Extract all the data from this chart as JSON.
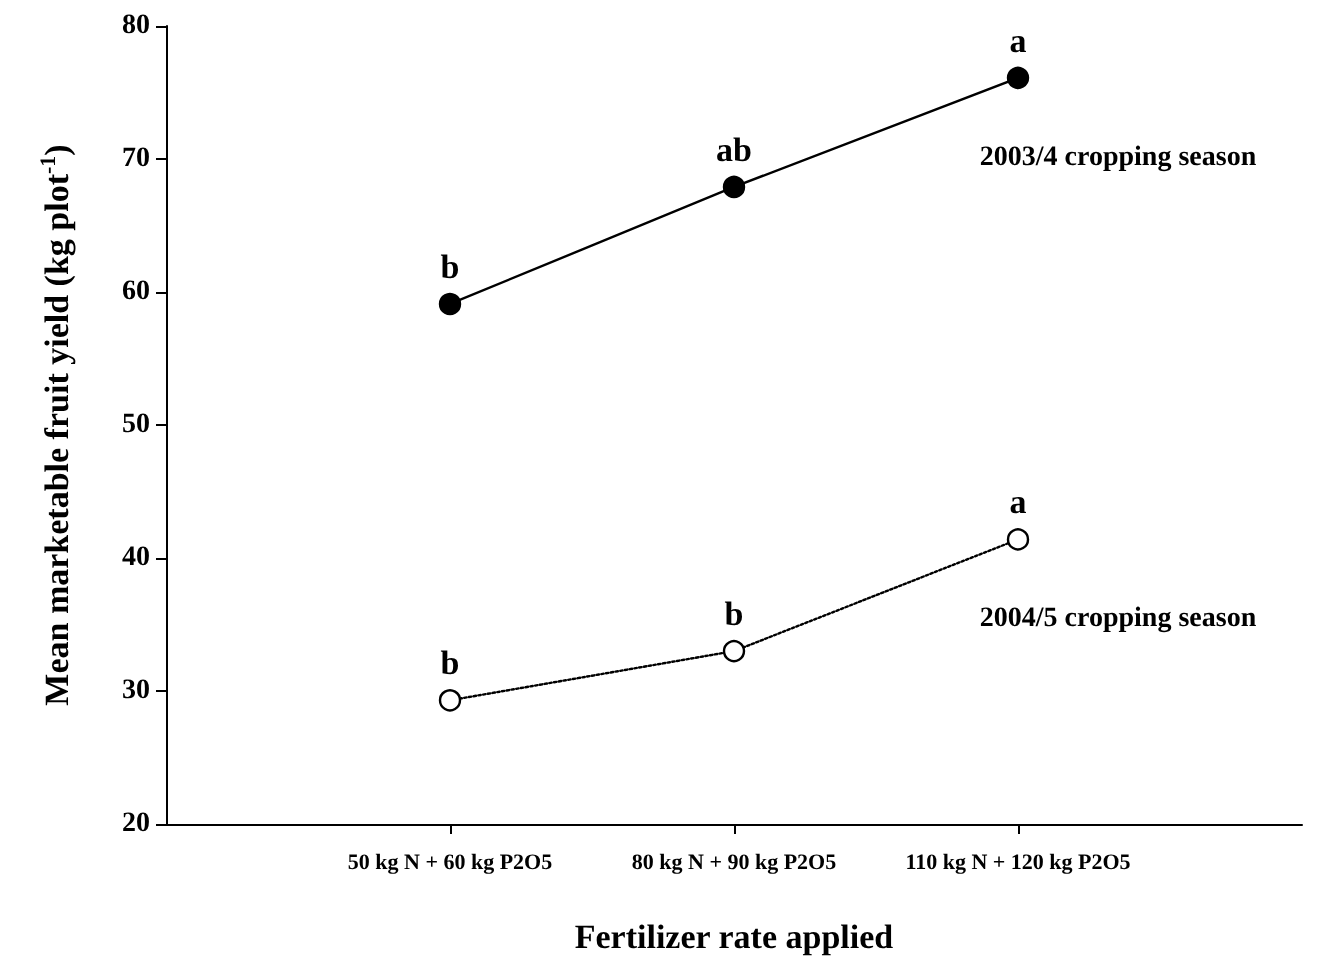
{
  "chart_data": {
    "type": "line",
    "xlabel": "Fertilizer rate applied",
    "ylabel": "Mean marketable fruit yield (kg plot$^{-1}$)",
    "categories": [
      "50 kg N + 60 kg P2O5",
      "80 kg N + 90 kg P2O5",
      "110 kg N + 120 kg P2O5"
    ],
    "series": [
      {
        "name": "2003/4 cropping season",
        "color": "#000000",
        "values": [
          59.1,
          67.9,
          76.1
        ],
        "line_style": "solid"
      },
      {
        "name": "2004/5 cropping season",
        "color": "#000000",
        "values": [
          29.3,
          33.0,
          41.4
        ],
        "line_style": "dotted"
      }
    ],
    "ylim": [
      20,
      80
    ],
    "yticks": [
      20,
      30,
      40,
      50,
      60,
      70,
      80
    ],
    "grid": false,
    "legend": false,
    "marker": "circle",
    "annotations": [
      {
        "text": "b",
        "x": "50 kg N + 60 kg P2O5",
        "y": 59.1
      },
      {
        "text": "ab",
        "x": "80 kg N + 90 kg P2O5",
        "y": 67.9
      },
      {
        "text": "a",
        "x": "110 kg N + 120 kg P2O5",
        "y": 76.1
      },
      {
        "text": "b",
        "x": "50 kg N + 60 kg P2O5",
        "y": 29.3
      },
      {
        "text": "b",
        "x": "80 kg N + 90 kg P2O5",
        "y": 33.0
      },
      {
        "text": "a",
        "x": "110 kg N + 120 kg P2O5",
        "y": 41.4
      }
    ]
  }
}
